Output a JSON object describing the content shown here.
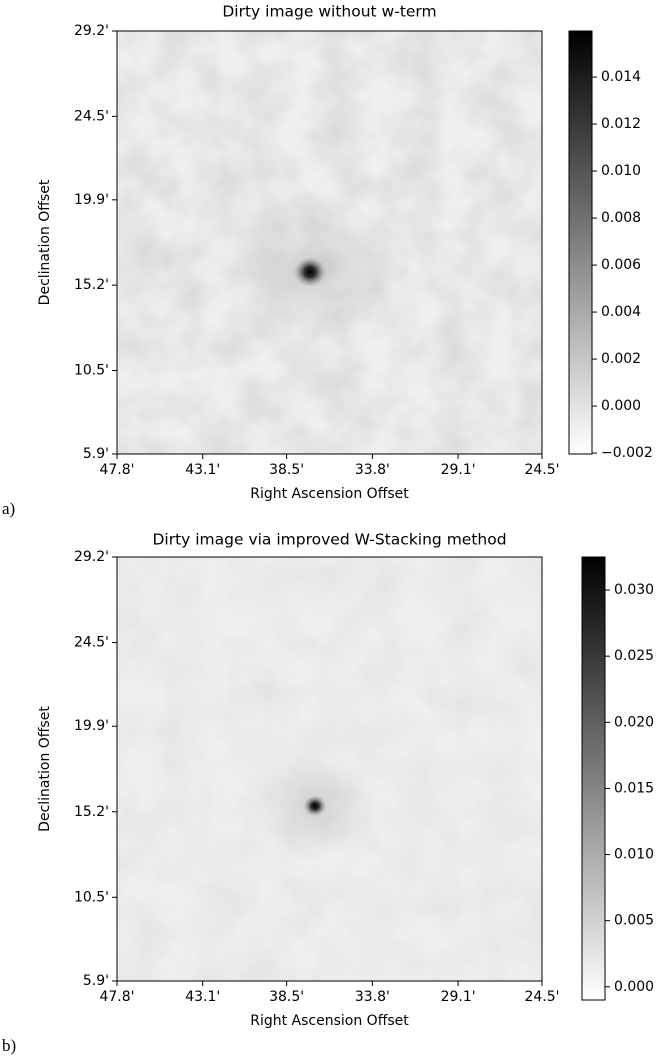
{
  "chart_data": [
    {
      "type": "image",
      "title": "Dirty image without w-term",
      "xlabel": "Right Ascension Offset",
      "ylabel": "Declination Offset",
      "panel_label": "a)",
      "xlim": [
        47.8,
        24.5
      ],
      "ylim": [
        5.9,
        29.2
      ],
      "xticks": [
        {
          "value": 47.8,
          "label": "47.8'"
        },
        {
          "value": 43.1,
          "label": "43.1'"
        },
        {
          "value": 38.5,
          "label": "38.5'"
        },
        {
          "value": 33.8,
          "label": "33.8'"
        },
        {
          "value": 29.1,
          "label": "29.1'"
        },
        {
          "value": 24.5,
          "label": "24.5'"
        }
      ],
      "yticks": [
        {
          "value": 5.9,
          "label": "5.9'"
        },
        {
          "value": 10.5,
          "label": "10.5'"
        },
        {
          "value": 15.2,
          "label": "15.2'"
        },
        {
          "value": 19.9,
          "label": "19.9'"
        },
        {
          "value": 24.5,
          "label": "24.5'"
        },
        {
          "value": 29.2,
          "label": "29.2'"
        }
      ],
      "colorbar": {
        "lim": [
          -0.00204,
          0.01596
        ],
        "ticks": [
          {
            "value": -0.002,
            "label": "−0.002"
          },
          {
            "value": 0,
            "label": "0.000"
          },
          0.002,
          0.004,
          0.006,
          0.008,
          {
            "value": 0.01,
            "label": "0.010"
          },
          0.012,
          0.014
        ]
      }
    },
    {
      "type": "image",
      "title": "Dirty image via improved W-Stacking method",
      "xlabel": "Right Ascension Offset",
      "ylabel": "Declination Offset",
      "panel_label": "b)",
      "xlim": [
        47.8,
        24.5
      ],
      "ylim": [
        5.9,
        29.2
      ],
      "xticks": [
        {
          "value": 47.8,
          "label": "47.8'"
        },
        {
          "value": 43.1,
          "label": "43.1'"
        },
        {
          "value": 38.5,
          "label": "38.5'"
        },
        {
          "value": 33.8,
          "label": "33.8'"
        },
        {
          "value": 29.1,
          "label": "29.1'"
        },
        {
          "value": 24.5,
          "label": "24.5'"
        }
      ],
      "yticks": [
        {
          "value": 5.9,
          "label": "5.9'"
        },
        {
          "value": 10.5,
          "label": "10.5'"
        },
        {
          "value": 15.2,
          "label": "15.2'"
        },
        {
          "value": 19.9,
          "label": "19.9'"
        },
        {
          "value": 24.5,
          "label": "24.5'"
        },
        {
          "value": 29.2,
          "label": "29.2'"
        }
      ],
      "colorbar": {
        "lim": [
          -0.001,
          0.0325
        ],
        "ticks": [
          {
            "value": 0,
            "label": "0.000"
          },
          0.005,
          {
            "value": 0.01,
            "label": "0.010"
          },
          0.015,
          {
            "value": 0.02,
            "label": "0.020"
          },
          0.025,
          {
            "value": 0.03,
            "label": "0.030"
          }
        ]
      }
    }
  ]
}
